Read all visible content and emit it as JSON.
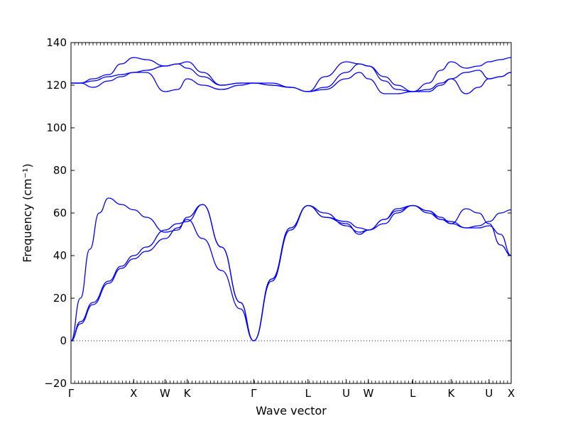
{
  "chart_data": {
    "type": "line",
    "title": "",
    "xlabel": "Wave vector",
    "ylabel": "Frequency (cm⁻¹)",
    "ylim": [
      -20,
      140
    ],
    "yticks": [
      -20,
      0,
      20,
      40,
      60,
      80,
      100,
      120,
      140
    ],
    "grid": false,
    "line_color": "#0000ff",
    "zero_line_color": "#0000ff",
    "x_tick_labels": [
      {
        "label": "Γ",
        "x": 0.0
      },
      {
        "label": "X",
        "x": 1.0
      },
      {
        "label": "W",
        "x": 1.5
      },
      {
        "label": "K",
        "x": 1.854
      },
      {
        "label": "Γ",
        "x": 2.914
      },
      {
        "label": "L",
        "x": 3.78
      },
      {
        "label": "U",
        "x": 4.39
      },
      {
        "label": "W",
        "x": 4.744
      },
      {
        "label": "L",
        "x": 5.451
      },
      {
        "label": "K",
        "x": 6.063
      },
      {
        "label": "U",
        "x": 6.667
      },
      {
        "label": "X",
        "x": 7.021
      }
    ],
    "xlim": [
      0,
      7.021
    ],
    "series": [
      {
        "x": [
          0,
          0.15,
          0.35,
          0.6,
          0.8,
          1.0,
          1.2,
          1.5,
          1.7,
          1.854,
          2.1,
          2.4,
          2.7,
          2.914,
          3.2,
          3.5,
          3.78,
          4.05,
          4.39,
          4.6,
          4.744,
          5.0,
          5.2,
          5.451,
          5.7,
          5.9,
          6.063,
          6.3,
          6.5,
          6.667,
          6.85,
          7.021
        ],
        "y": [
          0,
          8,
          17,
          27,
          34,
          38.5,
          42,
          48,
          53,
          57,
          48,
          33,
          15,
          0,
          28,
          52,
          63.5,
          58,
          56,
          53,
          52,
          55,
          60,
          63.5,
          60,
          57,
          56,
          53,
          54,
          56,
          60,
          61.5
        ]
      },
      {
        "x": [
          0,
          0.15,
          0.35,
          0.6,
          0.8,
          1.0,
          1.2,
          1.5,
          1.7,
          1.854,
          2.1,
          2.4,
          2.7,
          2.914,
          3.2,
          3.5,
          3.78,
          4.05,
          4.39,
          4.6,
          4.744,
          5.0,
          5.2,
          5.451,
          5.7,
          5.9,
          6.063,
          6.3,
          6.5,
          6.667,
          6.85,
          7.021
        ],
        "y": [
          0,
          9,
          18,
          28,
          35,
          40,
          44,
          52,
          55,
          56,
          64,
          44,
          18,
          0,
          29,
          53,
          63.5,
          60,
          54,
          51,
          52,
          57,
          62,
          63.5,
          61,
          58,
          55,
          53,
          53,
          54,
          50,
          40
        ]
      },
      {
        "x": [
          0,
          0.15,
          0.3,
          0.45,
          0.6,
          0.8,
          1.0,
          1.2,
          1.5,
          1.7,
          1.854,
          2.1,
          2.4,
          2.7,
          2.914,
          3.2,
          3.5,
          3.78,
          4.05,
          4.39,
          4.6,
          4.744,
          5.0,
          5.2,
          5.451,
          5.7,
          5.9,
          6.063,
          6.3,
          6.5,
          6.667,
          6.85,
          7.021
        ],
        "y": [
          0,
          20,
          43,
          60,
          67,
          64,
          61.5,
          58,
          51,
          52,
          58,
          64,
          44,
          18,
          0,
          29,
          53,
          63.5,
          58,
          55,
          50,
          52,
          57,
          61,
          63.5,
          61,
          57,
          55,
          62,
          60,
          55,
          45,
          40
        ]
      },
      {
        "x": [
          0,
          0.15,
          0.35,
          0.6,
          0.8,
          1.0,
          1.2,
          1.5,
          1.7,
          1.854,
          2.1,
          2.4,
          2.7,
          2.914,
          3.2,
          3.5,
          3.78,
          4.05,
          4.39,
          4.6,
          4.744,
          5.0,
          5.2,
          5.451,
          5.7,
          5.9,
          6.063,
          6.3,
          6.5,
          6.667,
          6.85,
          7.021
        ],
        "y": [
          121,
          121,
          119,
          122,
          124,
          126,
          126,
          117,
          118,
          123,
          120,
          118,
          120,
          121,
          121,
          119,
          117,
          118,
          123,
          126,
          123,
          116,
          116,
          117,
          117,
          120,
          123,
          126,
          127,
          123,
          124,
          126
        ]
      },
      {
        "x": [
          0,
          0.15,
          0.35,
          0.6,
          0.8,
          1.0,
          1.2,
          1.5,
          1.7,
          1.854,
          2.1,
          2.4,
          2.7,
          2.914,
          3.2,
          3.5,
          3.78,
          4.05,
          4.39,
          4.6,
          4.744,
          5.0,
          5.2,
          5.451,
          5.7,
          5.9,
          6.063,
          6.3,
          6.5,
          6.667,
          6.85,
          7.021
        ],
        "y": [
          121,
          121,
          122,
          124,
          125,
          126,
          127,
          129,
          130,
          128,
          124,
          120,
          121,
          121,
          120,
          119,
          117,
          119,
          126,
          130,
          129,
          124,
          120,
          117,
          118,
          121,
          123,
          116,
          119,
          123,
          124,
          126
        ]
      },
      {
        "x": [
          0,
          0.15,
          0.35,
          0.6,
          0.8,
          1.0,
          1.2,
          1.5,
          1.7,
          1.854,
          2.1,
          2.4,
          2.7,
          2.914,
          3.2,
          3.5,
          3.78,
          4.05,
          4.39,
          4.6,
          4.744,
          5.0,
          5.2,
          5.451,
          5.7,
          5.9,
          6.063,
          6.3,
          6.5,
          6.667,
          6.85,
          7.021
        ],
        "y": [
          121,
          121,
          123,
          125,
          130,
          133,
          132,
          129,
          130,
          131,
          126,
          120,
          121,
          121,
          120,
          119,
          117,
          124,
          131,
          130,
          129,
          122,
          118,
          117,
          121,
          127,
          131,
          128,
          129,
          131,
          132,
          133
        ]
      }
    ]
  }
}
